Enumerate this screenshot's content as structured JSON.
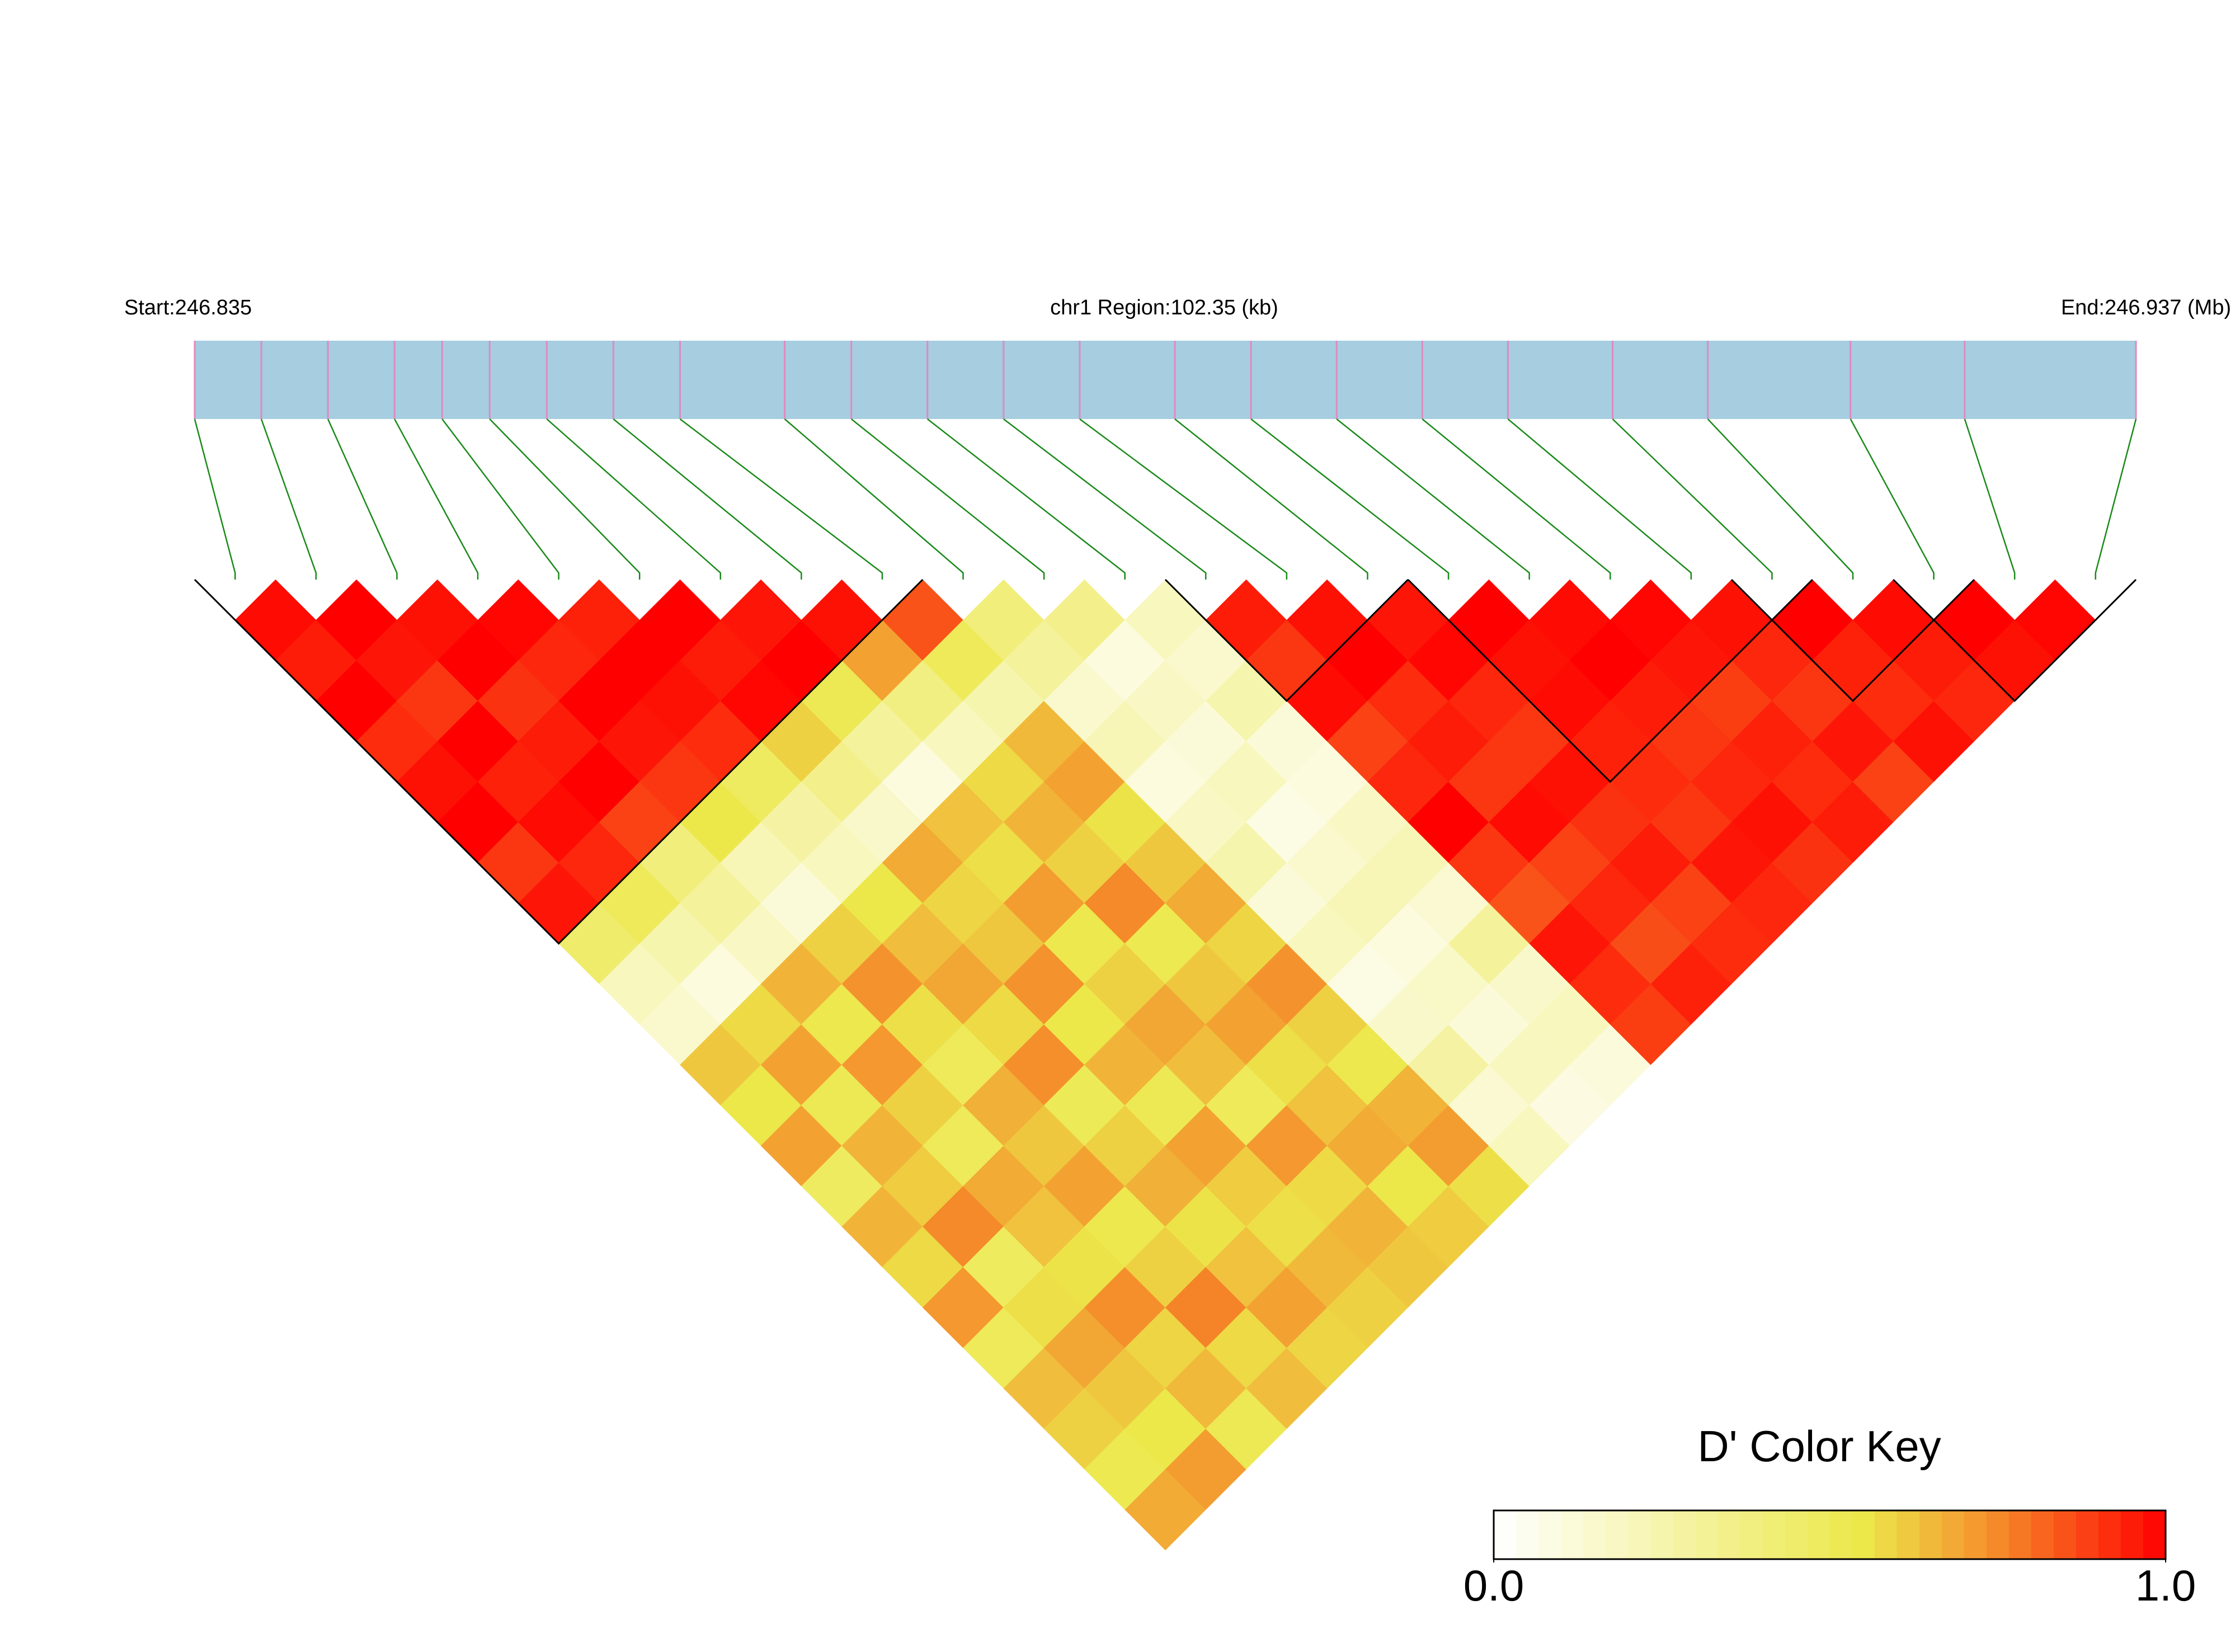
{
  "chart_data": {
    "type": "ld-heatmap",
    "title_left": "Start:246.835",
    "title_center": "chr1 Region:102.35 (kb)",
    "title_right": "End:246.937 (Mb)",
    "key_title": "D' Color Key",
    "key_ticks": [
      {
        "value": 0,
        "label": "0.0"
      },
      {
        "value": 1,
        "label": "1.0"
      }
    ],
    "xlim": [
      246.835,
      246.937
    ],
    "positions": [
      246.835,
      246.8385,
      246.842,
      246.8455,
      246.848,
      246.8505,
      246.8535,
      246.857,
      246.8605,
      246.866,
      246.8695,
      246.8735,
      246.8775,
      246.8815,
      246.8865,
      246.8905,
      246.895,
      246.8995,
      246.904,
      246.9095,
      246.9145,
      246.922,
      246.928,
      246.937
    ],
    "ld": [
      [
        0.98,
        0.95,
        1,
        0.92,
        0.97,
        1,
        0.9,
        0.96,
        0.45,
        0.2,
        0.15,
        0.62,
        0.55,
        0.7,
        0.48,
        0.66,
        0.58,
        0.72,
        0.5,
        0.64,
        0.6,
        0.53,
        0.68
      ],
      [
        1,
        0.96,
        0.9,
        1,
        0.94,
        0.98,
        0.93,
        0.5,
        0.25,
        0.1,
        0.58,
        0.7,
        0.52,
        0.66,
        0.61,
        0.75,
        0.49,
        0.57,
        0.69,
        0.62,
        0.55,
        0.71
      ],
      [
        0.97,
        1,
        0.91,
        0.95,
        1,
        0.88,
        0.4,
        0.3,
        0.18,
        0.66,
        0.54,
        0.72,
        0.6,
        0.5,
        0.68,
        0.63,
        0.56,
        0.74,
        0.59,
        0.65,
        0.52
      ],
      [
        0.99,
        0.93,
        1,
        0.96,
        0.9,
        0.55,
        0.22,
        0.12,
        0.6,
        0.73,
        0.57,
        0.5,
        0.67,
        0.62,
        0.7,
        0.54,
        0.6,
        0.76,
        0.58,
        0.64
      ],
      [
        0.94,
        1,
        0.97,
        0.92,
        0.48,
        0.28,
        0.2,
        0.55,
        0.64,
        0.69,
        0.58,
        0.74,
        0.51,
        0.6,
        0.67,
        0.56,
        0.63,
        0.7,
        0.59
      ],
      [
        1,
        0.95,
        0.99,
        0.6,
        0.35,
        0.16,
        0.68,
        0.59,
        0.62,
        0.73,
        0.55,
        0.66,
        0.52,
        0.7,
        0.61,
        0.57,
        0.65,
        0.6
      ],
      [
        0.96,
        1,
        0.52,
        0.3,
        0.1,
        0.63,
        0.57,
        0.71,
        0.54,
        0.6,
        0.69,
        0.64,
        0.5,
        0.72,
        0.58,
        0.66,
        0.62
      ],
      [
        0.97,
        0.7,
        0.38,
        0.2,
        0.58,
        0.66,
        0.6,
        0.75,
        0.53,
        0.62,
        0.7,
        0.57,
        0.63,
        0.68,
        0.55,
        0.61
      ],
      [
        0.85,
        0.5,
        0.25,
        0.65,
        0.7,
        0.56,
        0.62,
        0.68,
        0.59,
        0.73,
        0.6,
        0.54,
        0.66,
        0.71,
        0.57
      ],
      [
        0.4,
        0.3,
        0.15,
        0.22,
        0.1,
        0.18,
        0.25,
        0.12,
        0.2,
        0.08,
        0.16,
        0.28,
        0.14,
        0.2
      ],
      [
        0.35,
        0.1,
        0.18,
        0.12,
        0.2,
        0.08,
        0.15,
        0.22,
        0.1,
        0.17,
        0.12,
        0.19,
        0.09
      ],
      [
        0.2,
        0.15,
        0.25,
        0.12,
        0.1,
        0.18,
        0.22,
        0.14,
        0.3,
        0.16,
        0.2,
        0.11
      ],
      [
        0.95,
        0.9,
        0.98,
        0.88,
        0.93,
        1,
        0.9,
        0.85,
        0.96,
        0.92,
        0.89
      ],
      [
        0.97,
        1,
        0.92,
        0.95,
        0.9,
        0.98,
        0.88,
        0.93,
        0.86,
        0.94
      ],
      [
        0.96,
        0.99,
        0.93,
        0.9,
        0.97,
        0.91,
        0.95,
        0.88,
        0.92
      ],
      [
        1,
        0.97,
        0.98,
        0.94,
        0.92,
        0.9,
        0.96,
        0.93
      ],
      [
        0.98,
        1,
        0.95,
        0.9,
        0.93,
        0.97,
        0.91
      ],
      [
        0.99,
        0.96,
        0.89,
        0.94,
        0.92,
        0.95
      ],
      [
        0.97,
        0.93,
        0.9,
        0.96,
        0.88
      ],
      [
        1,
        0.94,
        0.92,
        0.97
      ],
      [
        0.98,
        0.95,
        0.93
      ],
      [
        1,
        0.97
      ],
      [
        0.99
      ]
    ],
    "blocks": [
      [
        0,
        8
      ],
      [
        12,
        14
      ],
      [
        15,
        19
      ],
      [
        19,
        21
      ],
      [
        21,
        23
      ]
    ],
    "colorscale": [
      [
        0,
        "#ffffff"
      ],
      [
        0.55,
        "#ece84a"
      ],
      [
        0.75,
        "#f58a2a"
      ],
      [
        1,
        "#ff0000"
      ]
    ],
    "track_color": "#a6cde0",
    "snp_color": "#e08ac0",
    "link_color": "#1a8a1a",
    "block_color": "#000000"
  }
}
